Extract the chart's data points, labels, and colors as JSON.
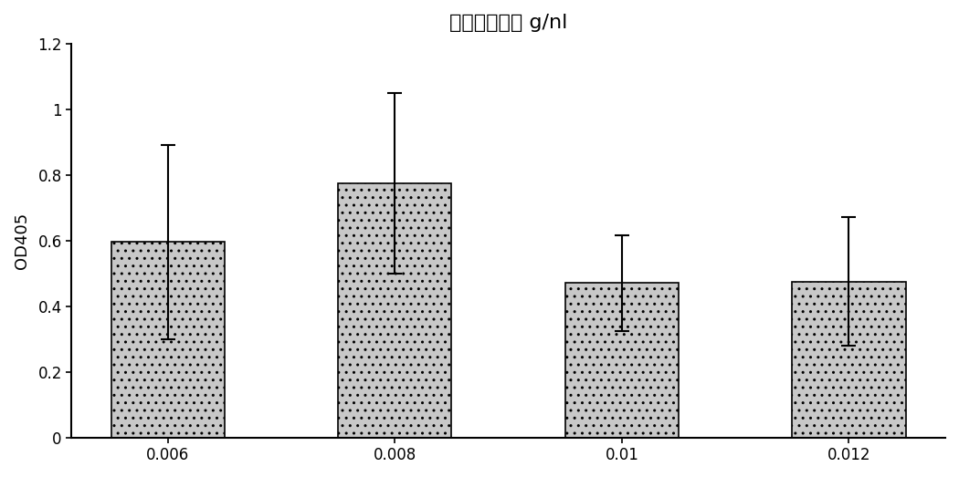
{
  "title_text": "终血图原浓度 g/nl",
  "ylabel": "OD405",
  "categories": [
    "0.006",
    "0.008",
    "0.01",
    "0.012"
  ],
  "values": [
    0.595,
    0.775,
    0.47,
    0.475
  ],
  "errors": [
    0.295,
    0.275,
    0.145,
    0.195
  ],
  "bar_color": "#c8c8c8",
  "bar_edge_color": "#000000",
  "ylim": [
    0,
    1.2
  ],
  "yticks": [
    0,
    0.2,
    0.4,
    0.6,
    0.8,
    1.0,
    1.2
  ],
  "bar_width": 0.5,
  "figsize": [
    10.5,
    5.23
  ],
  "dpi": 100,
  "background_color": "#ffffff",
  "hatch": "..",
  "title_fontsize": 16,
  "axis_fontsize": 13,
  "tick_fontsize": 12
}
